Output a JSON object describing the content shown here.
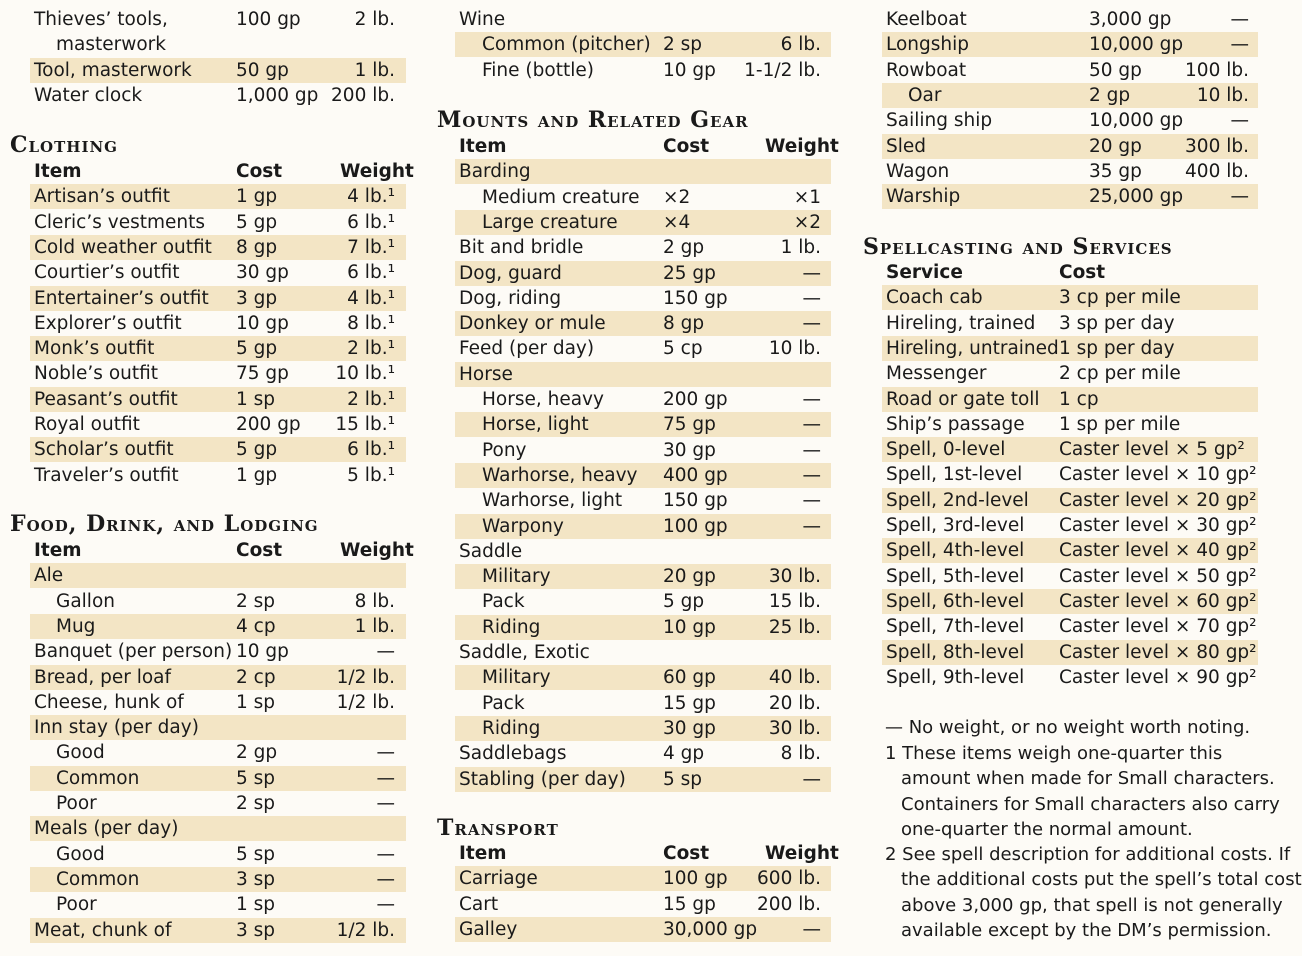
{
  "col1_top": [
    {
      "item": "Thieves’ tools,",
      "cost": "100 gp",
      "weight": "2 lb.",
      "shade": false,
      "indent": false
    },
    {
      "item": "masterwork",
      "cost": "",
      "weight": "",
      "shade": false,
      "indent": true
    },
    {
      "item": "Tool, masterwork",
      "cost": "50 gp",
      "weight": "1 lb.",
      "shade": true,
      "indent": false
    },
    {
      "item": "Water clock",
      "cost": "1,000 gp",
      "weight": "200 lb.",
      "shade": false,
      "indent": false
    }
  ],
  "clothing": {
    "title": "Clothing",
    "headers": {
      "item": "Item",
      "cost": "Cost",
      "weight": "Weight"
    },
    "rows": [
      {
        "item": "Artisan’s outfit",
        "cost": "1 gp",
        "weight": "4 lb.¹"
      },
      {
        "item": "Cleric’s vestments",
        "cost": "5 gp",
        "weight": "6 lb.¹"
      },
      {
        "item": "Cold weather outfit",
        "cost": "8 gp",
        "weight": "7 lb.¹"
      },
      {
        "item": "Courtier’s outfit",
        "cost": "30 gp",
        "weight": "6 lb.¹"
      },
      {
        "item": "Entertainer’s outfit",
        "cost": "3 gp",
        "weight": "4 lb.¹"
      },
      {
        "item": "Explorer’s outfit",
        "cost": "10 gp",
        "weight": "8 lb.¹"
      },
      {
        "item": "Monk’s outfit",
        "cost": "5 gp",
        "weight": "2 lb.¹"
      },
      {
        "item": "Noble’s outfit",
        "cost": "75 gp",
        "weight": "10 lb.¹"
      },
      {
        "item": "Peasant’s outfit",
        "cost": "1 sp",
        "weight": "2 lb.¹"
      },
      {
        "item": "Royal outfit",
        "cost": "200 gp",
        "weight": "15 lb.¹"
      },
      {
        "item": "Scholar’s outfit",
        "cost": "5 gp",
        "weight": "6 lb.¹"
      },
      {
        "item": "Traveler’s outfit",
        "cost": "1 gp",
        "weight": "5 lb.¹"
      }
    ]
  },
  "food": {
    "title": "Food, Drink, and Lodging",
    "headers": {
      "item": "Item",
      "cost": "Cost",
      "weight": "Weight"
    },
    "rows": [
      {
        "item": "Ale",
        "cost": "",
        "weight": "",
        "indent": false
      },
      {
        "item": "Gallon",
        "cost": "2 sp",
        "weight": "8 lb.",
        "indent": true
      },
      {
        "item": "Mug",
        "cost": "4 cp",
        "weight": "1 lb.",
        "indent": true
      },
      {
        "item": "Banquet (per person)",
        "cost": "10 gp",
        "weight": "—",
        "indent": false
      },
      {
        "item": "Bread, per loaf",
        "cost": "2 cp",
        "weight": "1/2 lb.",
        "indent": false
      },
      {
        "item": "Cheese, hunk of",
        "cost": "1 sp",
        "weight": "1/2 lb.",
        "indent": false
      },
      {
        "item": "Inn stay (per day)",
        "cost": "",
        "weight": "",
        "indent": false
      },
      {
        "item": "Good",
        "cost": "2 gp",
        "weight": "—",
        "indent": true
      },
      {
        "item": "Common",
        "cost": "5 sp",
        "weight": "—",
        "indent": true
      },
      {
        "item": "Poor",
        "cost": "2 sp",
        "weight": "—",
        "indent": true
      },
      {
        "item": "Meals (per day)",
        "cost": "",
        "weight": "",
        "indent": false
      },
      {
        "item": "Good",
        "cost": "5 sp",
        "weight": "—",
        "indent": true
      },
      {
        "item": "Common",
        "cost": "3 sp",
        "weight": "—",
        "indent": true
      },
      {
        "item": "Poor",
        "cost": "1 sp",
        "weight": "—",
        "indent": true
      },
      {
        "item": "Meat, chunk of",
        "cost": "3 sp",
        "weight": "1/2 lb.",
        "indent": false
      }
    ]
  },
  "wine": [
    {
      "item": "Wine",
      "cost": "",
      "weight": "",
      "shade": false,
      "indent": false
    },
    {
      "item": "Common (pitcher)",
      "cost": "2 sp",
      "weight": "6 lb.",
      "shade": true,
      "indent": true
    },
    {
      "item": "Fine (bottle)",
      "cost": "10 gp",
      "weight": "1-1/2 lb.",
      "shade": false,
      "indent": true
    }
  ],
  "mounts": {
    "title": "Mounts and Related Gear",
    "headers": {
      "item": "Item",
      "cost": "Cost",
      "weight": "Weight"
    },
    "rows": [
      {
        "item": "Barding",
        "cost": "",
        "weight": "",
        "indent": false
      },
      {
        "item": "Medium creature",
        "cost": "×2",
        "weight": "×1",
        "indent": true
      },
      {
        "item": "Large creature",
        "cost": "×4",
        "weight": "×2",
        "indent": true
      },
      {
        "item": "Bit and bridle",
        "cost": "2 gp",
        "weight": "1 lb.",
        "indent": false
      },
      {
        "item": "Dog, guard",
        "cost": "25 gp",
        "weight": "—",
        "indent": false
      },
      {
        "item": "Dog, riding",
        "cost": "150 gp",
        "weight": "—",
        "indent": false
      },
      {
        "item": "Donkey or mule",
        "cost": "8 gp",
        "weight": "—",
        "indent": false
      },
      {
        "item": "Feed (per day)",
        "cost": "5 cp",
        "weight": "10 lb.",
        "indent": false
      },
      {
        "item": "Horse",
        "cost": "",
        "weight": "",
        "indent": false
      },
      {
        "item": "Horse, heavy",
        "cost": "200 gp",
        "weight": "—",
        "indent": true
      },
      {
        "item": "Horse, light",
        "cost": "75 gp",
        "weight": "—",
        "indent": true
      },
      {
        "item": "Pony",
        "cost": "30 gp",
        "weight": "—",
        "indent": true
      },
      {
        "item": "Warhorse, heavy",
        "cost": "400 gp",
        "weight": "—",
        "indent": true
      },
      {
        "item": "Warhorse, light",
        "cost": "150 gp",
        "weight": "—",
        "indent": true
      },
      {
        "item": "Warpony",
        "cost": "100 gp",
        "weight": "—",
        "indent": true
      },
      {
        "item": "Saddle",
        "cost": "",
        "weight": "",
        "indent": false
      },
      {
        "item": "Military",
        "cost": "20 gp",
        "weight": "30 lb.",
        "indent": true
      },
      {
        "item": "Pack",
        "cost": "5 gp",
        "weight": "15 lb.",
        "indent": true
      },
      {
        "item": "Riding",
        "cost": "10 gp",
        "weight": "25 lb.",
        "indent": true
      },
      {
        "item": "Saddle, Exotic",
        "cost": "",
        "weight": "",
        "indent": false
      },
      {
        "item": "Military",
        "cost": "60 gp",
        "weight": "40 lb.",
        "indent": true
      },
      {
        "item": "Pack",
        "cost": "15 gp",
        "weight": "20 lb.",
        "indent": true
      },
      {
        "item": "Riding",
        "cost": "30 gp",
        "weight": "30 lb.",
        "indent": true
      },
      {
        "item": "Saddlebags",
        "cost": "4 gp",
        "weight": "8 lb.",
        "indent": false
      },
      {
        "item": "Stabling (per day)",
        "cost": "5 sp",
        "weight": "—",
        "indent": false
      }
    ]
  },
  "transport": {
    "title": "Transport",
    "headers": {
      "item": "Item",
      "cost": "Cost",
      "weight": "Weight"
    },
    "rows": [
      {
        "item": "Carriage",
        "cost": "100 gp",
        "weight": "600 lb.",
        "indent": false
      },
      {
        "item": "Cart",
        "cost": "15 gp",
        "weight": "200 lb.",
        "indent": false
      },
      {
        "item": "Galley",
        "cost": "30,000 gp",
        "weight": "—",
        "indent": false
      }
    ]
  },
  "col3_top": [
    {
      "item": "Keelboat",
      "cost": "3,000 gp",
      "weight": "—",
      "shade": false,
      "indent": false
    },
    {
      "item": "Longship",
      "cost": "10,000 gp",
      "weight": "—",
      "shade": true,
      "indent": false
    },
    {
      "item": "Rowboat",
      "cost": "50 gp",
      "weight": "100 lb.",
      "shade": false,
      "indent": false
    },
    {
      "item": "Oar",
      "cost": "2 gp",
      "weight": "10 lb.",
      "shade": true,
      "indent": true
    },
    {
      "item": "Sailing ship",
      "cost": "10,000 gp",
      "weight": "—",
      "shade": false,
      "indent": false
    },
    {
      "item": "Sled",
      "cost": "20 gp",
      "weight": "300 lb.",
      "shade": true,
      "indent": false
    },
    {
      "item": "Wagon",
      "cost": "35 gp",
      "weight": "400 lb.",
      "shade": false,
      "indent": false
    },
    {
      "item": "Warship",
      "cost": "25,000 gp",
      "weight": "—",
      "shade": true,
      "indent": false
    }
  ],
  "services": {
    "title": "Spellcasting and Services",
    "headers": {
      "service": "Service",
      "cost": "Cost"
    },
    "rows": [
      {
        "service": "Coach cab",
        "cost": "3 cp per mile"
      },
      {
        "service": "Hireling, trained",
        "cost": "3 sp per day"
      },
      {
        "service": "Hireling, untrained",
        "cost": "1 sp per day"
      },
      {
        "service": "Messenger",
        "cost": "2 cp per mile"
      },
      {
        "service": "Road or gate toll",
        "cost": "1 cp"
      },
      {
        "service": "Ship’s passage",
        "cost": "1 sp per mile"
      },
      {
        "service": "Spell, 0-level",
        "cost": "Caster level × 5 gp²"
      },
      {
        "service": "Spell, 1st-level",
        "cost": "Caster level × 10 gp²"
      },
      {
        "service": "Spell, 2nd-level",
        "cost": "Caster level × 20 gp²"
      },
      {
        "service": "Spell, 3rd-level",
        "cost": "Caster level × 30 gp²"
      },
      {
        "service": "Spell, 4th-level",
        "cost": "Caster level × 40 gp²"
      },
      {
        "service": "Spell, 5th-level",
        "cost": "Caster level × 50 gp²"
      },
      {
        "service": "Spell, 6th-level",
        "cost": "Caster level × 60 gp²"
      },
      {
        "service": "Spell, 7th-level",
        "cost": "Caster level × 70 gp²"
      },
      {
        "service": "Spell, 8th-level",
        "cost": "Caster level × 80 gp²"
      },
      {
        "service": "Spell, 9th-level",
        "cost": "Caster level × 90 gp²"
      }
    ]
  },
  "notes": [
    [
      "— No weight, or no weight worth noting."
    ],
    [
      "1 These items weigh one-quarter this",
      "amount when made for Small characters.",
      "Containers for Small characters also carry",
      "one-quarter the normal amount."
    ],
    [
      "2 See spell description for additional costs. If",
      "the additional costs put the spell’s total cost",
      "above 3,000 gp, that spell is not generally",
      "available except by the DM’s permission."
    ]
  ]
}
